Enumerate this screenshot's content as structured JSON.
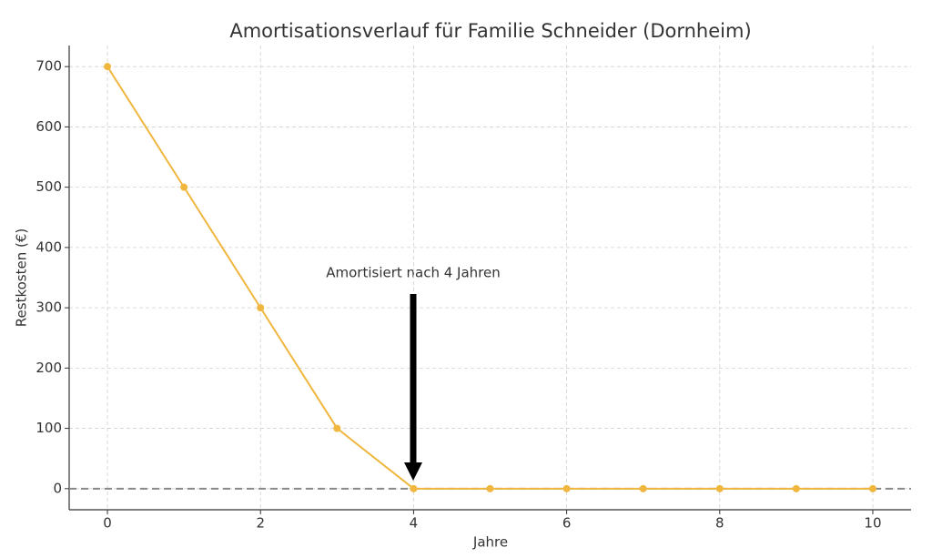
{
  "chart_data": {
    "type": "line",
    "title": "Amortisationsverlauf für Familie Schneider (Dornheim)",
    "x_label": "Jahre",
    "y_label": "Restkosten (€)",
    "x": [
      0,
      1,
      2,
      3,
      4,
      5,
      6,
      7,
      8,
      9,
      10
    ],
    "series": [
      {
        "name": "Restkosten",
        "color": "#f0b63e",
        "values": [
          700,
          500,
          300,
          100,
          0,
          0,
          0,
          0,
          0,
          0,
          0
        ]
      }
    ],
    "xlim": [
      -0.5,
      10.5
    ],
    "xticks": [
      0,
      2,
      4,
      6,
      8,
      10
    ],
    "ylim": [
      -35,
      735
    ],
    "yticks": [
      0,
      100,
      200,
      300,
      400,
      500,
      600,
      700
    ],
    "grid": true,
    "reference_line": 0,
    "annotation": "Amortisiert nach 4 Jahren"
  }
}
